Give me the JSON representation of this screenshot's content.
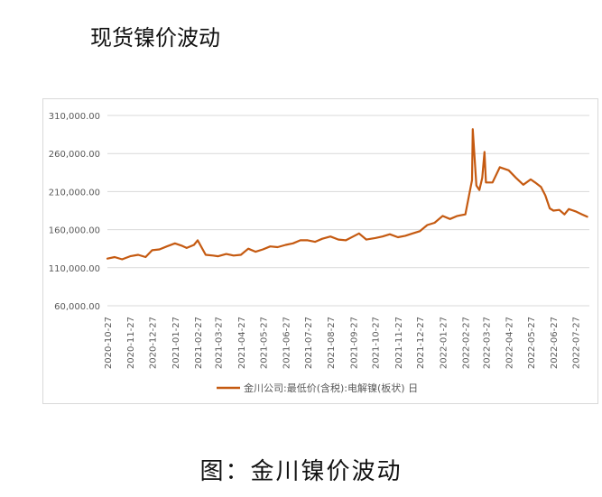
{
  "page": {
    "title": "现货镍价波动",
    "caption": "图：金川镍价波动"
  },
  "colors": {
    "series": "#c55a11",
    "gridline": "#d9d9d9",
    "axis_text": "#595959"
  },
  "chart_data": {
    "type": "line",
    "title": "",
    "xlabel": "",
    "ylabel": "",
    "ylim": [
      60000,
      310000
    ],
    "y_ticks": [
      "60,000.00",
      "110,000.00",
      "160,000.00",
      "210,000.00",
      "260,000.00",
      "310,000.00"
    ],
    "x_ticks": [
      "2020-10-27",
      "2020-11-27",
      "2020-12-27",
      "2021-01-27",
      "2021-02-27",
      "2021-03-27",
      "2021-04-27",
      "2021-05-27",
      "2021-06-27",
      "2021-07-27",
      "2021-08-27",
      "2021-09-27",
      "2021-10-27",
      "2021-11-27",
      "2021-12-27",
      "2022-01-27",
      "2022-02-27",
      "2022-03-27",
      "2022-04-27",
      "2022-05-27",
      "2022-06-27",
      "2022-07-27"
    ],
    "grid": "horizontal",
    "legend": "bottom",
    "series": [
      {
        "name": "金川公司:最低价(含税):电解镍(板状) 日",
        "x": [
          "2020-10-27",
          "2020-11-06",
          "2020-11-16",
          "2020-11-27",
          "2020-12-08",
          "2020-12-18",
          "2020-12-27",
          "2021-01-06",
          "2021-01-16",
          "2021-01-27",
          "2021-02-05",
          "2021-02-12",
          "2021-02-22",
          "2021-02-27",
          "2021-03-10",
          "2021-03-20",
          "2021-03-27",
          "2021-04-07",
          "2021-04-17",
          "2021-04-27",
          "2021-05-07",
          "2021-05-17",
          "2021-05-27",
          "2021-06-06",
          "2021-06-16",
          "2021-06-27",
          "2021-07-07",
          "2021-07-17",
          "2021-07-27",
          "2021-08-06",
          "2021-08-16",
          "2021-08-27",
          "2021-09-07",
          "2021-09-17",
          "2021-09-27",
          "2021-10-05",
          "2021-10-15",
          "2021-10-27",
          "2021-11-06",
          "2021-11-16",
          "2021-11-27",
          "2021-12-07",
          "2021-12-17",
          "2021-12-27",
          "2022-01-06",
          "2022-01-16",
          "2022-01-27",
          "2022-02-06",
          "2022-02-16",
          "2022-02-27",
          "2022-03-04",
          "2022-03-08",
          "2022-03-09",
          "2022-03-14",
          "2022-03-18",
          "2022-03-22",
          "2022-03-25",
          "2022-03-27",
          "2022-04-05",
          "2022-04-15",
          "2022-04-27",
          "2022-05-07",
          "2022-05-17",
          "2022-05-27",
          "2022-06-02",
          "2022-06-10",
          "2022-06-16",
          "2022-06-22",
          "2022-06-27",
          "2022-07-05",
          "2022-07-12",
          "2022-07-18",
          "2022-07-27",
          "2022-08-05",
          "2022-08-12"
        ],
        "values": [
          122000,
          124000,
          121000,
          125000,
          127000,
          124000,
          133000,
          134000,
          138000,
          142000,
          139000,
          136000,
          140000,
          146000,
          127000,
          126000,
          125000,
          128000,
          126000,
          127000,
          135000,
          131000,
          134000,
          138000,
          137000,
          140000,
          142000,
          146000,
          146000,
          144000,
          148000,
          151000,
          147000,
          146000,
          151000,
          155000,
          147000,
          149000,
          151000,
          154000,
          150000,
          152000,
          155000,
          158000,
          166000,
          169000,
          178000,
          174000,
          178000,
          180000,
          205000,
          225000,
          292000,
          218000,
          212000,
          228000,
          262000,
          222000,
          222000,
          242000,
          238000,
          228000,
          219000,
          226000,
          222000,
          216000,
          205000,
          188000,
          185000,
          186000,
          180000,
          187000,
          184000,
          180000,
          177000
        ]
      }
    ]
  }
}
